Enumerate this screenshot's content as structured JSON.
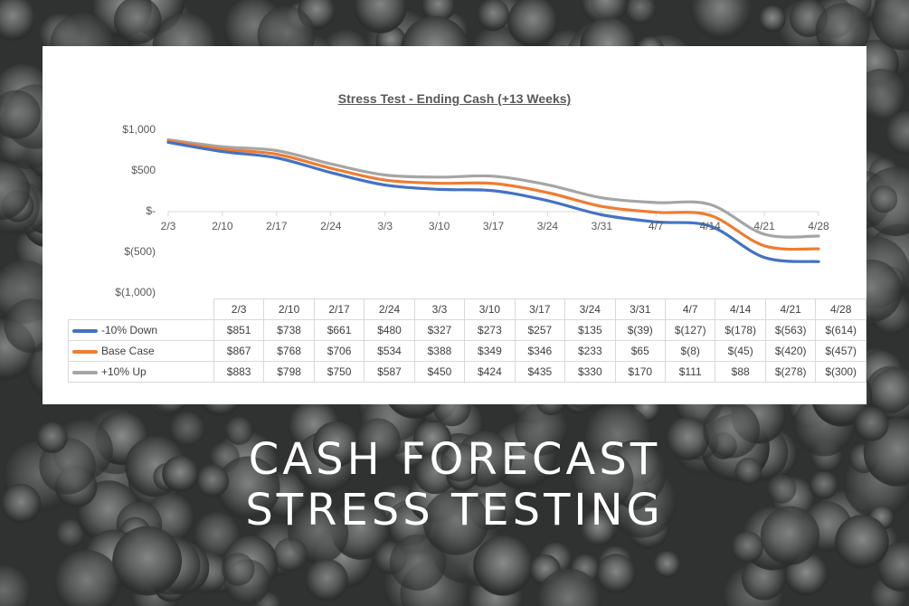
{
  "chart_data": {
    "type": "line",
    "title": "Stress Test - Ending Cash (+13 Weeks)",
    "categories": [
      "2/3",
      "2/10",
      "2/17",
      "2/24",
      "3/3",
      "3/10",
      "3/17",
      "3/24",
      "3/31",
      "4/7",
      "4/14",
      "4/21",
      "4/28"
    ],
    "ylim": [
      -1000,
      1000
    ],
    "yticks": [
      1000,
      500,
      0,
      -500,
      -1000
    ],
    "ytick_labels": [
      "$1,000",
      "$500",
      "$-",
      "$(500)",
      "$(1,000)"
    ],
    "grid": false,
    "legend": "data table below chart",
    "series": [
      {
        "name": "-10% Down",
        "color": "#4472c4",
        "values": [
          851,
          738,
          661,
          480,
          327,
          273,
          257,
          135,
          -39,
          -127,
          -178,
          -563,
          -614
        ],
        "labels": [
          "$851",
          "$738",
          "$661",
          "$480",
          "$327",
          "$273",
          "$257",
          "$135",
          "$(39)",
          "$(127)",
          "$(178)",
          "$(563)",
          "$(614)"
        ]
      },
      {
        "name": "Base Case",
        "color": "#ed7d31",
        "values": [
          867,
          768,
          706,
          534,
          388,
          349,
          346,
          233,
          65,
          -8,
          -45,
          -420,
          -457
        ],
        "labels": [
          "$867",
          "$768",
          "$706",
          "$534",
          "$388",
          "$349",
          "$346",
          "$233",
          "$65",
          "$(8)",
          "$(45)",
          "$(420)",
          "$(457)"
        ]
      },
      {
        "name": "+10% Up",
        "color": "#a5a5a5",
        "values": [
          883,
          798,
          750,
          587,
          450,
          424,
          435,
          330,
          170,
          111,
          88,
          -278,
          -300
        ],
        "labels": [
          "$883",
          "$798",
          "$750",
          "$587",
          "$450",
          "$424",
          "$435",
          "$330",
          "$170",
          "$111",
          "$88",
          "$(278)",
          "$(300)"
        ]
      }
    ]
  },
  "caption": {
    "line1": "CASH FORECAST",
    "line2": "STRESS TESTING"
  }
}
